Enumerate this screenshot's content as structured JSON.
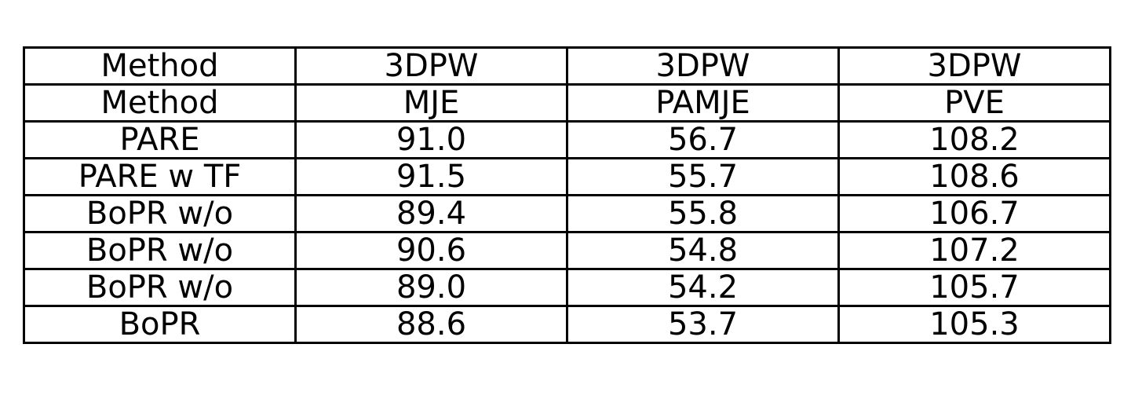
{
  "chart_data": {
    "type": "table",
    "header_rows": [
      [
        "Method",
        "3DPW",
        "3DPW",
        "3DPW"
      ],
      [
        "Method",
        "MJE",
        "PAMJE",
        "PVE"
      ]
    ],
    "rows": [
      [
        "PARE",
        "91.0",
        "56.7",
        "108.2"
      ],
      [
        "PARE w TF",
        "91.5",
        "55.7",
        "108.6"
      ],
      [
        "BoPR w/o",
        "89.4",
        "55.8",
        "106.7"
      ],
      [
        "BoPR w/o",
        "90.6",
        "54.8",
        "107.2"
      ],
      [
        "BoPR w/o",
        "89.0",
        "54.2",
        "105.7"
      ],
      [
        "BoPR",
        "88.6",
        "53.7",
        "105.3"
      ]
    ]
  }
}
